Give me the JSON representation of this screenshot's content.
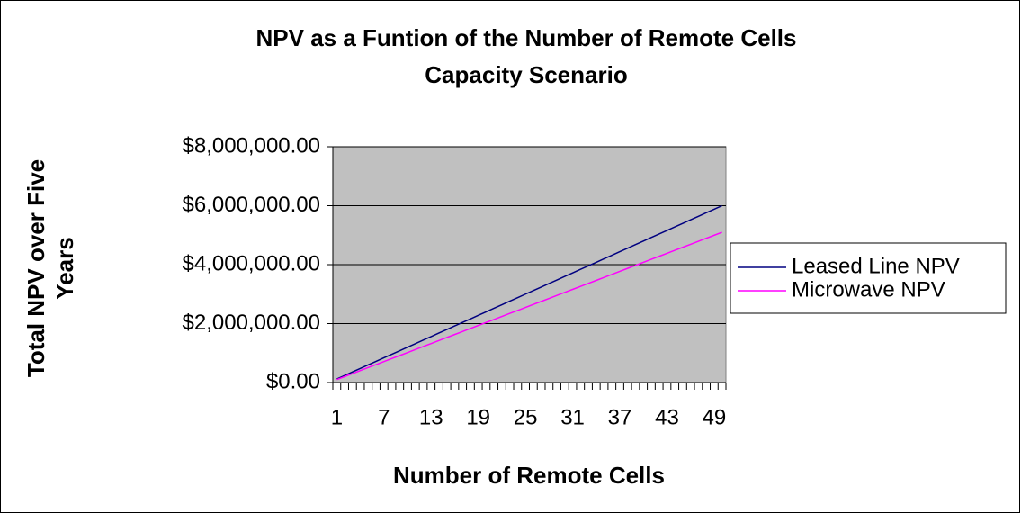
{
  "chart_data": {
    "type": "line",
    "title": "NPV as a Funtion of the Number of Remote Cells",
    "subtitle": "Capacity Scenario",
    "ylabel": [
      "Total NPV over Five",
      "Years"
    ],
    "xlabel": "Number of Remote Cells",
    "categories": [
      "1",
      null,
      null,
      null,
      null,
      null,
      "7",
      null,
      null,
      null,
      null,
      null,
      "13",
      null,
      null,
      null,
      null,
      null,
      "19",
      null,
      null,
      null,
      null,
      null,
      "25",
      null,
      null,
      null,
      null,
      null,
      "31",
      null,
      null,
      null,
      null,
      null,
      "37",
      null,
      null,
      null,
      null,
      null,
      "43",
      null,
      null,
      null,
      null,
      null,
      "49",
      null
    ],
    "series": [
      {
        "name": "Leased Line NPV",
        "color": "#000080",
        "values": [
          120000,
          240000,
          360000,
          480000,
          600000,
          720000,
          840000,
          960000,
          1080000,
          1200000,
          1320000,
          1440000,
          1560000,
          1680000,
          1800000,
          1920000,
          2040000,
          2160000,
          2280000,
          2400000,
          2520000,
          2640000,
          2760000,
          2880000,
          3000000,
          3120000,
          3240000,
          3360000,
          3480000,
          3600000,
          3720000,
          3840000,
          3960000,
          4080000,
          4200000,
          4320000,
          4440000,
          4560000,
          4680000,
          4800000,
          4920000,
          5040000,
          5160000,
          5280000,
          5400000,
          5520000,
          5640000,
          5760000,
          5880000,
          6000000
        ]
      },
      {
        "name": "Microwave NPV",
        "color": "#ff00ff",
        "values": [
          100000,
          202000,
          304000,
          406000,
          508000,
          610000,
          712000,
          814000,
          916000,
          1018000,
          1120000,
          1222000,
          1324000,
          1426000,
          1528000,
          1630000,
          1732000,
          1834000,
          1936000,
          2038000,
          2140000,
          2242000,
          2344000,
          2446000,
          2548000,
          2650000,
          2752000,
          2854000,
          2956000,
          3058000,
          3160000,
          3262000,
          3364000,
          3466000,
          3568000,
          3670000,
          3772000,
          3874000,
          3976000,
          4078000,
          4180000,
          4282000,
          4384000,
          4486000,
          4588000,
          4690000,
          4792000,
          4894000,
          4996000,
          5098000
        ]
      }
    ],
    "ylim": [
      0,
      8000000
    ],
    "yticks": [
      {
        "value": 0,
        "label": "$0.00"
      },
      {
        "value": 2000000,
        "label": "$2,000,000.00"
      },
      {
        "value": 4000000,
        "label": "$4,000,000.00"
      },
      {
        "value": 6000000,
        "label": "$6,000,000.00"
      },
      {
        "value": 8000000,
        "label": "$8,000,000.00"
      }
    ],
    "grid": true,
    "legend": "right",
    "plot_background": "#c0c0c0"
  }
}
